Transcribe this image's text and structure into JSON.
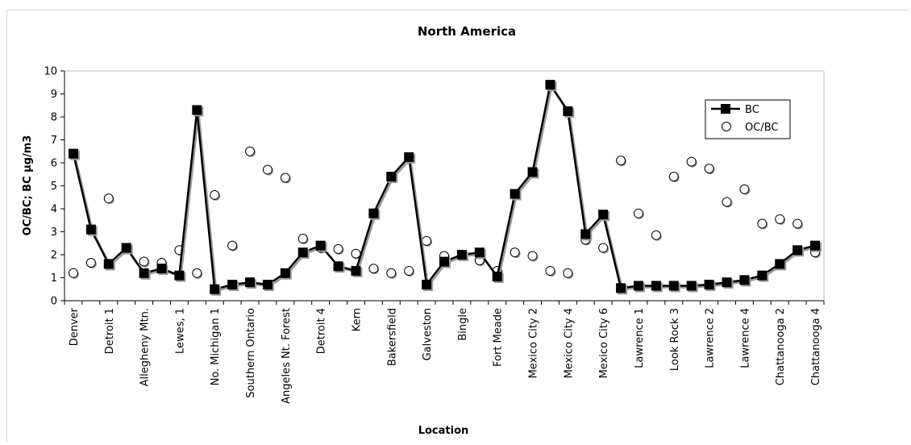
{
  "chart_data": {
    "type": "line",
    "title": "North America",
    "xlabel": "Location",
    "ylabel": "OC/BC; BC μg/m3",
    "ylim": [
      0,
      10
    ],
    "yticks": [
      0,
      1,
      2,
      3,
      4,
      5,
      6,
      7,
      8,
      9,
      10
    ],
    "grid": false,
    "legend_position": "top-right",
    "colors": {
      "bc": "#000000",
      "ocbc_marker_fill": "#ffffff",
      "ocbc_shadow": "#9a9a9a"
    },
    "categories": [
      "Denver",
      "",
      "Detroit 1",
      "",
      "Allegheny Mtn.",
      "",
      "Lewes, 1",
      "",
      "No. Michigan 1",
      "",
      "Southern Ontario",
      "",
      "Angeles Nt. Forest",
      "",
      "Detroit 4",
      "",
      "Kern",
      "",
      "Bakersfield",
      "",
      "Galveston",
      "",
      "Bingle",
      "",
      "Fort Meade",
      "",
      "Mexico City 2",
      "",
      "Mexico City 4",
      "",
      "Mexico City 6",
      "",
      "Lawrence 1",
      "",
      "Look Rock 3",
      "",
      "Lawrence 2",
      "",
      "Lawrence 4",
      "",
      "Chattanooga 2",
      "",
      "Chattanooga 4"
    ],
    "series": [
      {
        "name": "BC",
        "style": "line-square",
        "values": [
          6.4,
          3.1,
          1.6,
          2.3,
          1.2,
          1.4,
          1.1,
          8.3,
          0.5,
          0.7,
          0.8,
          0.7,
          1.2,
          2.1,
          2.4,
          1.5,
          1.3,
          3.8,
          5.4,
          6.25,
          0.7,
          1.7,
          2.0,
          2.1,
          1.05,
          4.65,
          5.6,
          9.4,
          8.25,
          2.9,
          3.75,
          0.55,
          0.65,
          0.65,
          0.65,
          0.65,
          0.7,
          0.8,
          0.9,
          1.1,
          1.6,
          2.2,
          2.4
        ]
      },
      {
        "name": "OC/BC",
        "style": "open-circle",
        "values": [
          1.2,
          1.65,
          4.45,
          null,
          1.7,
          1.65,
          2.2,
          1.2,
          4.6,
          2.4,
          6.5,
          5.7,
          5.35,
          2.7,
          2.3,
          2.25,
          2.05,
          1.4,
          1.2,
          1.3,
          2.6,
          1.95,
          null,
          1.75,
          1.3,
          2.1,
          1.95,
          1.3,
          1.2,
          2.65,
          2.3,
          6.1,
          3.8,
          2.85,
          5.4,
          6.05,
          5.75,
          4.3,
          4.85,
          3.35,
          3.55,
          3.35,
          2.1
        ]
      }
    ]
  }
}
